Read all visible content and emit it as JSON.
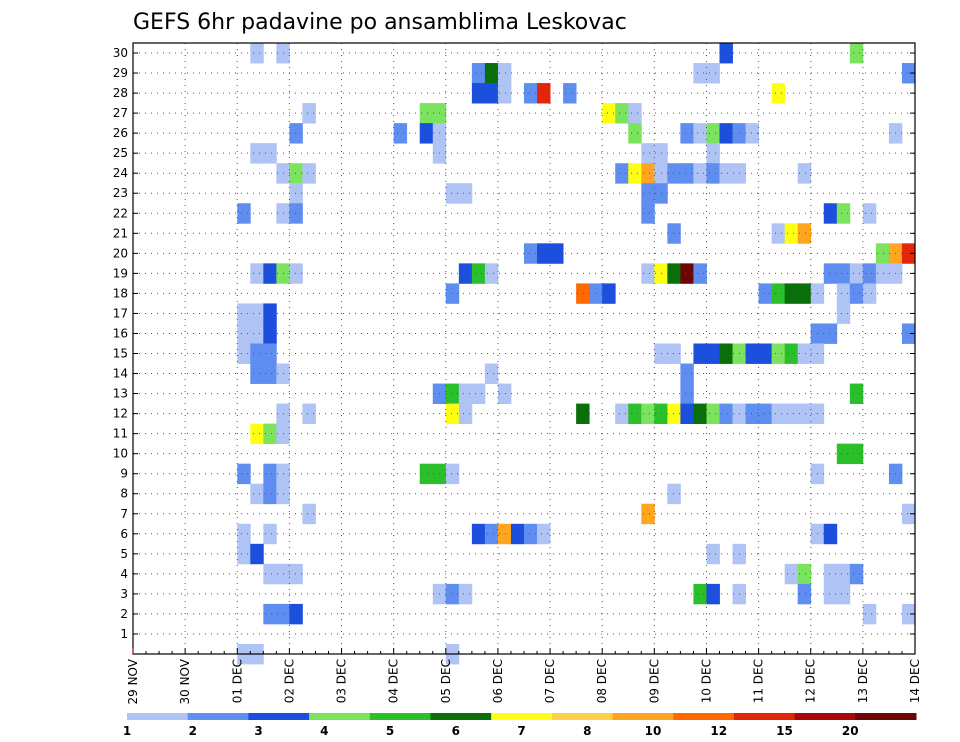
{
  "chart_data": {
    "type": "heatmap",
    "title": "GEFS 6hr padavine po ansamblima Leskovac",
    "xlabel": "",
    "ylabel": "",
    "x_tick_labels": [
      "29 NOV",
      "30 NOV",
      "01 DEC",
      "02 DEC",
      "03 DEC",
      "04 DEC",
      "05 DEC",
      "06 DEC",
      "07 DEC",
      "08 DEC",
      "09 DEC",
      "10 DEC",
      "11 DEC",
      "12 DEC",
      "13 DEC",
      "14 DEC"
    ],
    "y_tick_labels": [
      "1",
      "2",
      "3",
      "4",
      "5",
      "6",
      "7",
      "8",
      "9",
      "10",
      "11",
      "12",
      "13",
      "14",
      "15",
      "16",
      "17",
      "18",
      "19",
      "20",
      "21",
      "22",
      "23",
      "24",
      "25",
      "26",
      "27",
      "28",
      "29",
      "30"
    ],
    "xlim_steps": [
      0,
      60
    ],
    "steps_per_day": 4,
    "ylim": [
      0,
      30
    ],
    "grid": true,
    "legend": {
      "placement": "bottom",
      "labels": [
        "1",
        "2",
        "3",
        "4",
        "5",
        "6",
        "7",
        "8",
        "10",
        "12",
        "15",
        "20"
      ],
      "colors": [
        "#afc3f5",
        "#5f8ef0",
        "#1b4fdc",
        "#7ce35f",
        "#2cbf2c",
        "#0a6e0a",
        "#ffff14",
        "#ffd14b",
        "#ffa51f",
        "#ff6a00",
        "#e1260a",
        "#aa0808",
        "#6e0505"
      ]
    },
    "cells": [
      [
        9,
        30,
        0
      ],
      [
        11,
        30,
        0
      ],
      [
        45,
        30,
        2
      ],
      [
        55,
        30,
        3
      ],
      [
        26,
        29,
        1
      ],
      [
        27,
        29,
        5
      ],
      [
        28,
        29,
        0
      ],
      [
        43,
        29,
        0
      ],
      [
        44,
        29,
        0
      ],
      [
        59,
        29,
        1
      ],
      [
        26,
        28,
        2
      ],
      [
        27,
        28,
        2
      ],
      [
        28,
        28,
        0
      ],
      [
        30,
        28,
        1
      ],
      [
        31,
        28,
        10
      ],
      [
        33,
        28,
        1
      ],
      [
        49,
        28,
        6
      ],
      [
        13,
        27,
        0
      ],
      [
        22,
        27,
        3
      ],
      [
        23,
        27,
        3
      ],
      [
        36,
        27,
        6
      ],
      [
        37,
        27,
        3
      ],
      [
        38,
        27,
        0
      ],
      [
        12,
        26,
        1
      ],
      [
        20,
        26,
        1
      ],
      [
        22,
        26,
        2
      ],
      [
        23,
        26,
        0
      ],
      [
        38,
        26,
        3
      ],
      [
        42,
        26,
        1
      ],
      [
        43,
        26,
        0
      ],
      [
        44,
        26,
        3
      ],
      [
        45,
        26,
        2
      ],
      [
        46,
        26,
        1
      ],
      [
        47,
        26,
        0
      ],
      [
        58,
        26,
        0
      ],
      [
        9,
        25,
        0
      ],
      [
        10,
        25,
        0
      ],
      [
        23,
        25,
        0
      ],
      [
        39,
        25,
        0
      ],
      [
        40,
        25,
        0
      ],
      [
        44,
        25,
        0
      ],
      [
        11,
        24,
        0
      ],
      [
        12,
        24,
        3
      ],
      [
        13,
        24,
        0
      ],
      [
        37,
        24,
        1
      ],
      [
        38,
        24,
        6
      ],
      [
        39,
        24,
        8
      ],
      [
        40,
        24,
        0
      ],
      [
        41,
        24,
        1
      ],
      [
        42,
        24,
        1
      ],
      [
        43,
        24,
        0
      ],
      [
        44,
        24,
        1
      ],
      [
        45,
        24,
        0
      ],
      [
        46,
        24,
        0
      ],
      [
        51,
        24,
        0
      ],
      [
        12,
        23,
        0
      ],
      [
        24,
        23,
        0
      ],
      [
        25,
        23,
        0
      ],
      [
        39,
        23,
        1
      ],
      [
        40,
        23,
        1
      ],
      [
        8,
        22,
        1
      ],
      [
        11,
        22,
        0
      ],
      [
        12,
        22,
        1
      ],
      [
        39,
        22,
        1
      ],
      [
        53,
        22,
        2
      ],
      [
        54,
        22,
        3
      ],
      [
        56,
        22,
        0
      ],
      [
        41,
        21,
        1
      ],
      [
        49,
        21,
        0
      ],
      [
        50,
        21,
        6
      ],
      [
        51,
        21,
        8
      ],
      [
        30,
        20,
        1
      ],
      [
        31,
        20,
        2
      ],
      [
        32,
        20,
        2
      ],
      [
        57,
        20,
        3
      ],
      [
        58,
        20,
        8
      ],
      [
        59,
        20,
        10
      ],
      [
        9,
        19,
        0
      ],
      [
        10,
        19,
        2
      ],
      [
        11,
        19,
        3
      ],
      [
        12,
        19,
        0
      ],
      [
        25,
        19,
        2
      ],
      [
        26,
        19,
        4
      ],
      [
        27,
        19,
        0
      ],
      [
        39,
        19,
        0
      ],
      [
        40,
        19,
        6
      ],
      [
        41,
        19,
        5
      ],
      [
        42,
        19,
        12
      ],
      [
        43,
        19,
        1
      ],
      [
        53,
        19,
        1
      ],
      [
        54,
        19,
        1
      ],
      [
        55,
        19,
        0
      ],
      [
        56,
        19,
        1
      ],
      [
        57,
        19,
        0
      ],
      [
        58,
        19,
        0
      ],
      [
        24,
        18,
        1
      ],
      [
        34,
        18,
        9
      ],
      [
        35,
        18,
        1
      ],
      [
        36,
        18,
        2
      ],
      [
        48,
        18,
        1
      ],
      [
        49,
        18,
        4
      ],
      [
        50,
        18,
        5
      ],
      [
        51,
        18,
        5
      ],
      [
        52,
        18,
        0
      ],
      [
        54,
        18,
        0
      ],
      [
        55,
        18,
        1
      ],
      [
        56,
        18,
        0
      ],
      [
        8,
        17,
        0
      ],
      [
        9,
        17,
        0
      ],
      [
        10,
        17,
        2
      ],
      [
        54,
        17,
        0
      ],
      [
        8,
        16,
        0
      ],
      [
        9,
        16,
        0
      ],
      [
        10,
        16,
        2
      ],
      [
        52,
        16,
        1
      ],
      [
        53,
        16,
        1
      ],
      [
        59,
        16,
        1
      ],
      [
        8,
        15,
        0
      ],
      [
        9,
        15,
        1
      ],
      [
        10,
        15,
        1
      ],
      [
        40,
        15,
        0
      ],
      [
        41,
        15,
        0
      ],
      [
        43,
        15,
        2
      ],
      [
        44,
        15,
        2
      ],
      [
        45,
        15,
        5
      ],
      [
        46,
        15,
        3
      ],
      [
        47,
        15,
        2
      ],
      [
        48,
        15,
        2
      ],
      [
        49,
        15,
        3
      ],
      [
        50,
        15,
        4
      ],
      [
        51,
        15,
        0
      ],
      [
        52,
        15,
        0
      ],
      [
        9,
        14,
        1
      ],
      [
        10,
        14,
        1
      ],
      [
        11,
        14,
        0
      ],
      [
        27,
        14,
        0
      ],
      [
        42,
        14,
        1
      ],
      [
        23,
        13,
        1
      ],
      [
        24,
        13,
        4
      ],
      [
        25,
        13,
        0
      ],
      [
        26,
        13,
        0
      ],
      [
        28,
        13,
        0
      ],
      [
        42,
        13,
        1
      ],
      [
        55,
        13,
        4
      ],
      [
        11,
        12,
        0
      ],
      [
        13,
        12,
        0
      ],
      [
        24,
        12,
        6
      ],
      [
        25,
        12,
        0
      ],
      [
        34,
        12,
        5
      ],
      [
        37,
        12,
        0
      ],
      [
        38,
        12,
        4
      ],
      [
        39,
        12,
        3
      ],
      [
        40,
        12,
        4
      ],
      [
        41,
        12,
        6
      ],
      [
        42,
        12,
        2
      ],
      [
        43,
        12,
        5
      ],
      [
        44,
        12,
        3
      ],
      [
        45,
        12,
        1
      ],
      [
        46,
        12,
        0
      ],
      [
        47,
        12,
        1
      ],
      [
        48,
        12,
        1
      ],
      [
        49,
        12,
        0
      ],
      [
        50,
        12,
        0
      ],
      [
        51,
        12,
        0
      ],
      [
        52,
        12,
        0
      ],
      [
        9,
        11,
        6
      ],
      [
        10,
        11,
        3
      ],
      [
        11,
        11,
        0
      ],
      [
        54,
        10,
        4
      ],
      [
        55,
        10,
        4
      ],
      [
        8,
        9,
        1
      ],
      [
        10,
        9,
        1
      ],
      [
        11,
        9,
        0
      ],
      [
        22,
        9,
        4
      ],
      [
        23,
        9,
        4
      ],
      [
        24,
        9,
        0
      ],
      [
        52,
        9,
        0
      ],
      [
        58,
        9,
        1
      ],
      [
        9,
        8,
        0
      ],
      [
        10,
        8,
        1
      ],
      [
        11,
        8,
        0
      ],
      [
        41,
        8,
        0
      ],
      [
        13,
        7,
        0
      ],
      [
        39,
        7,
        8
      ],
      [
        59,
        7,
        0
      ],
      [
        8,
        6,
        0
      ],
      [
        10,
        6,
        0
      ],
      [
        26,
        6,
        2
      ],
      [
        27,
        6,
        1
      ],
      [
        28,
        6,
        8
      ],
      [
        29,
        6,
        2
      ],
      [
        30,
        6,
        1
      ],
      [
        31,
        6,
        0
      ],
      [
        52,
        6,
        0
      ],
      [
        53,
        6,
        2
      ],
      [
        8,
        5,
        0
      ],
      [
        9,
        5,
        2
      ],
      [
        44,
        5,
        0
      ],
      [
        46,
        5,
        0
      ],
      [
        10,
        4,
        0
      ],
      [
        11,
        4,
        0
      ],
      [
        12,
        4,
        0
      ],
      [
        50,
        4,
        0
      ],
      [
        51,
        4,
        3
      ],
      [
        53,
        4,
        0
      ],
      [
        54,
        4,
        0
      ],
      [
        55,
        4,
        1
      ],
      [
        23,
        3,
        0
      ],
      [
        24,
        3,
        1
      ],
      [
        25,
        3,
        0
      ],
      [
        43,
        3,
        4
      ],
      [
        44,
        3,
        2
      ],
      [
        46,
        3,
        0
      ],
      [
        51,
        3,
        1
      ],
      [
        53,
        3,
        0
      ],
      [
        54,
        3,
        0
      ],
      [
        10,
        2,
        1
      ],
      [
        11,
        2,
        1
      ],
      [
        12,
        2,
        2
      ],
      [
        56,
        2,
        0
      ],
      [
        59,
        2,
        0
      ],
      [
        8,
        0,
        0
      ],
      [
        9,
        0,
        0
      ],
      [
        24,
        0,
        0
      ]
    ]
  }
}
